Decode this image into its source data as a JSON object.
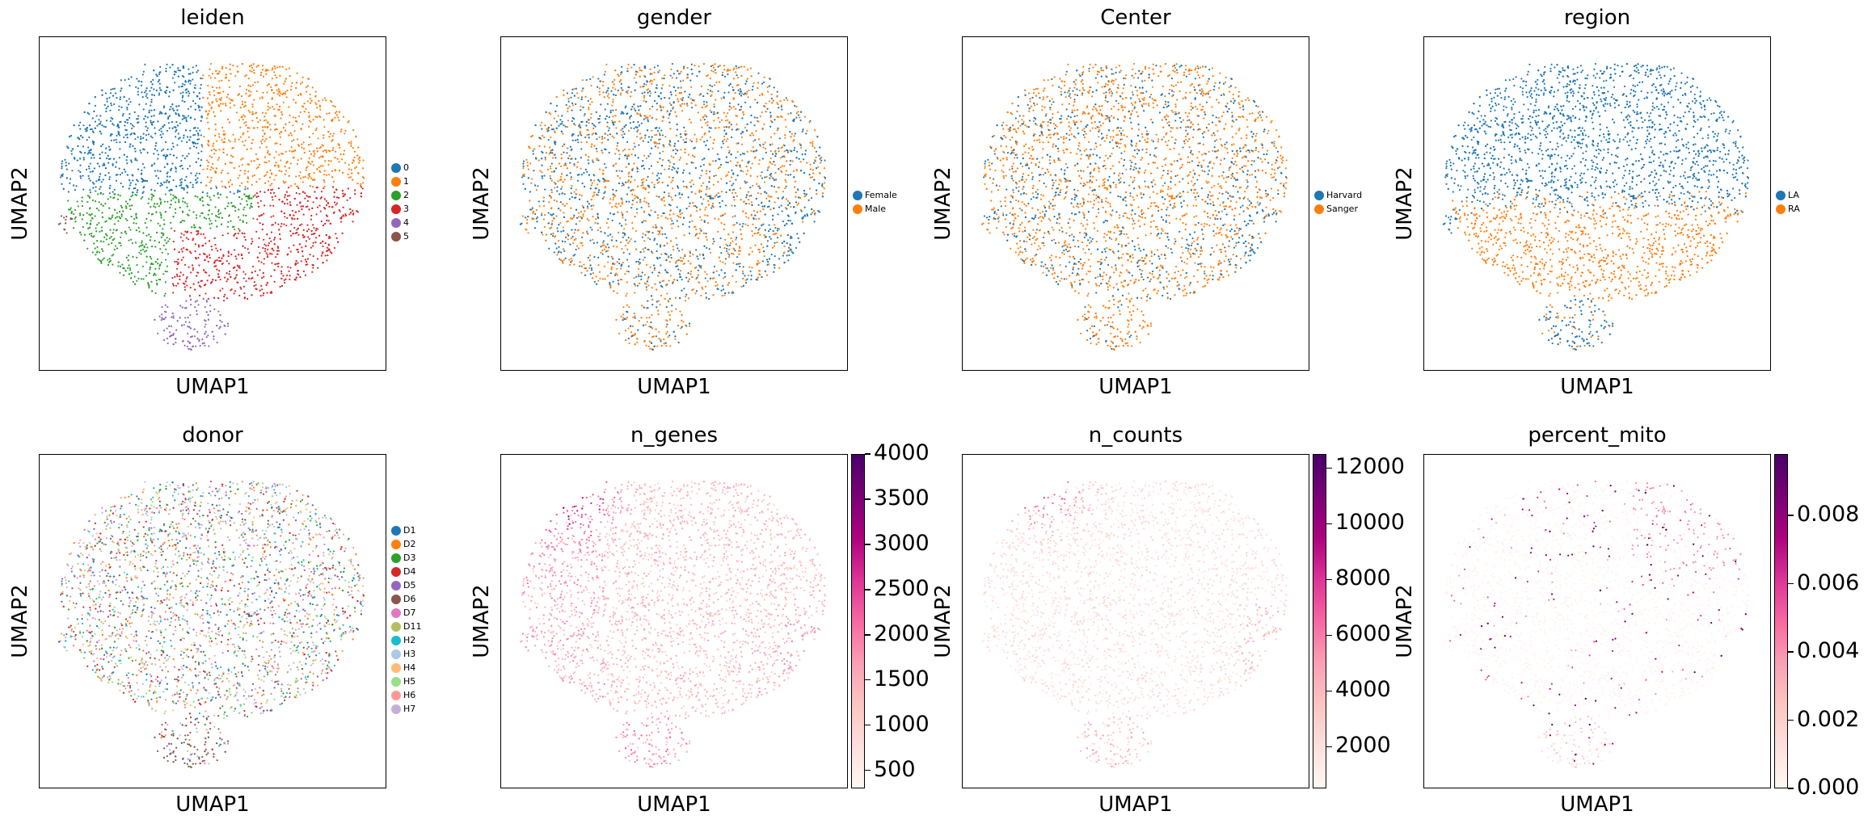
{
  "chart_data": [
    {
      "type": "scatter",
      "title": "leiden",
      "xlabel": "UMAP1",
      "ylabel": "UMAP2",
      "legend": "right",
      "categories": [
        "0",
        "1",
        "2",
        "3",
        "4",
        "5"
      ],
      "colors": [
        "#1f77b4",
        "#ff7f0e",
        "#2ca02c",
        "#d62728",
        "#9467bd",
        "#8c564b"
      ]
    },
    {
      "type": "scatter",
      "title": "gender",
      "xlabel": "UMAP1",
      "ylabel": "UMAP2",
      "legend": "right",
      "categories": [
        "Female",
        "Male"
      ],
      "colors": [
        "#1f77b4",
        "#ff7f0e"
      ]
    },
    {
      "type": "scatter",
      "title": "Center",
      "xlabel": "UMAP1",
      "ylabel": "UMAP2",
      "legend": "right",
      "categories": [
        "Harvard",
        "Sanger"
      ],
      "colors": [
        "#1f77b4",
        "#ff7f0e"
      ]
    },
    {
      "type": "scatter",
      "title": "region",
      "xlabel": "UMAP1",
      "ylabel": "UMAP2",
      "legend": "right",
      "categories": [
        "LA",
        "RA"
      ],
      "colors": [
        "#1f77b4",
        "#ff7f0e"
      ]
    },
    {
      "type": "scatter",
      "title": "donor",
      "xlabel": "UMAP1",
      "ylabel": "UMAP2",
      "legend": "right",
      "categories": [
        "D1",
        "D2",
        "D3",
        "D4",
        "D5",
        "D6",
        "D7",
        "D11",
        "H2",
        "H3",
        "H4",
        "H5",
        "H6",
        "H7"
      ],
      "colors": [
        "#1f77b4",
        "#ff7f0e",
        "#2ca02c",
        "#d62728",
        "#9467bd",
        "#8c564b",
        "#e377c2",
        "#b5bd61",
        "#17becf",
        "#aec7e8",
        "#ffbb78",
        "#98df8a",
        "#ff9896",
        "#c5b0d5"
      ]
    },
    {
      "type": "scatter",
      "title": "n_genes",
      "xlabel": "UMAP1",
      "ylabel": "UMAP2",
      "colorbar": {
        "min": 300,
        "max": 4000,
        "ticks": [
          "500",
          "1000",
          "1500",
          "2000",
          "2500",
          "3000",
          "3500",
          "4000"
        ],
        "tick_values": [
          500,
          1000,
          1500,
          2000,
          2500,
          3000,
          3500,
          4000
        ],
        "colormap": "RdPu"
      }
    },
    {
      "type": "scatter",
      "title": "n_counts",
      "xlabel": "UMAP1",
      "ylabel": "UMAP2",
      "colorbar": {
        "min": 500,
        "max": 12500,
        "ticks": [
          "2000",
          "4000",
          "6000",
          "8000",
          "10000",
          "12000"
        ],
        "tick_values": [
          2000,
          4000,
          6000,
          8000,
          10000,
          12000
        ],
        "colormap": "RdPu"
      }
    },
    {
      "type": "scatter",
      "title": "percent_mito",
      "xlabel": "UMAP1",
      "ylabel": "UMAP2",
      "colorbar": {
        "min": 0,
        "max": 0.0098,
        "ticks": [
          "0.000",
          "0.002",
          "0.004",
          "0.006",
          "0.008"
        ],
        "tick_values": [
          0,
          0.002,
          0.004,
          0.006,
          0.008
        ],
        "colormap": "RdPu"
      }
    }
  ]
}
